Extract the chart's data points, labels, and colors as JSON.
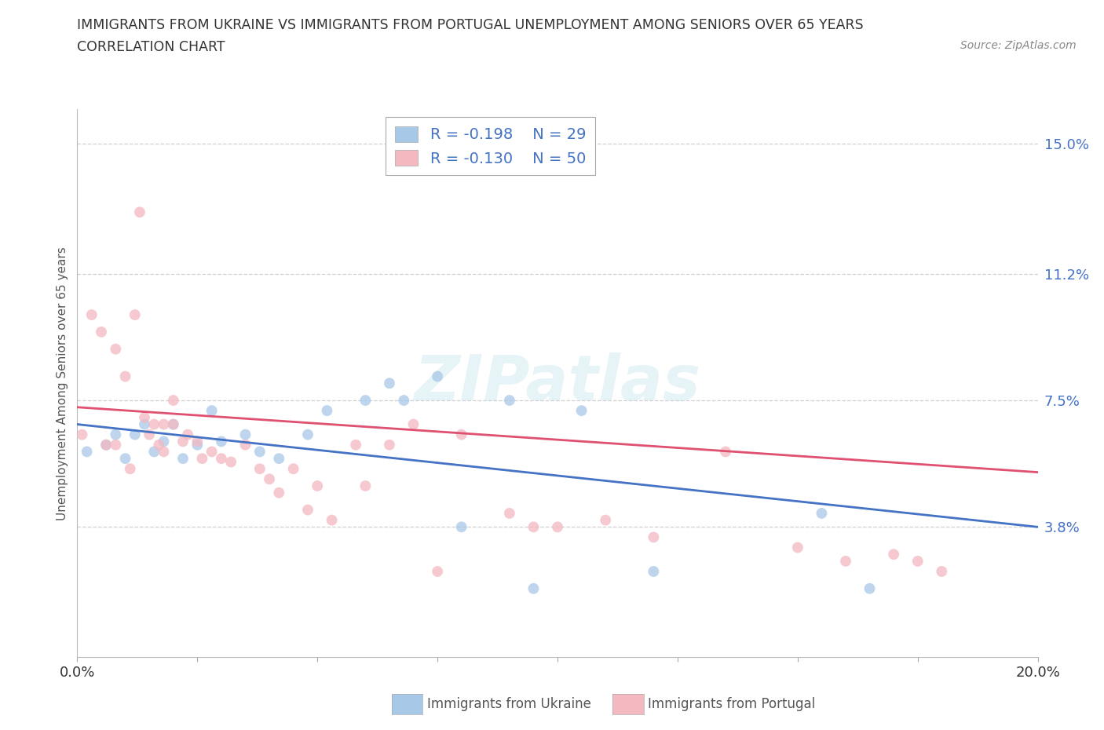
{
  "title_line1": "IMMIGRANTS FROM UKRAINE VS IMMIGRANTS FROM PORTUGAL UNEMPLOYMENT AMONG SENIORS OVER 65 YEARS",
  "title_line2": "CORRELATION CHART",
  "source": "Source: ZipAtlas.com",
  "ylabel": "Unemployment Among Seniors over 65 years",
  "xlim": [
    0.0,
    0.2
  ],
  "ylim": [
    0.0,
    0.16
  ],
  "yticks": [
    0.038,
    0.075,
    0.112,
    0.15
  ],
  "ytick_labels": [
    "3.8%",
    "7.5%",
    "11.2%",
    "15.0%"
  ],
  "xtick_positions": [
    0.0,
    0.025,
    0.05,
    0.075,
    0.1,
    0.125,
    0.15,
    0.175,
    0.2
  ],
  "ukraine_color": "#a8c8e8",
  "ukraine_edge_color": "#5b9bd5",
  "portugal_color": "#f4b8c1",
  "portugal_edge_color": "#e05070",
  "ukraine_R": -0.198,
  "ukraine_N": 29,
  "portugal_R": -0.13,
  "portugal_N": 50,
  "ukraine_scatter_x": [
    0.002,
    0.006,
    0.008,
    0.01,
    0.012,
    0.014,
    0.016,
    0.018,
    0.02,
    0.022,
    0.025,
    0.028,
    0.03,
    0.035,
    0.038,
    0.042,
    0.048,
    0.052,
    0.06,
    0.065,
    0.068,
    0.075,
    0.08,
    0.09,
    0.095,
    0.105,
    0.12,
    0.155,
    0.165
  ],
  "ukraine_scatter_y": [
    0.06,
    0.062,
    0.065,
    0.058,
    0.065,
    0.068,
    0.06,
    0.063,
    0.068,
    0.058,
    0.062,
    0.072,
    0.063,
    0.065,
    0.06,
    0.058,
    0.065,
    0.072,
    0.075,
    0.08,
    0.075,
    0.082,
    0.038,
    0.075,
    0.02,
    0.072,
    0.025,
    0.042,
    0.02
  ],
  "portugal_scatter_x": [
    0.001,
    0.003,
    0.005,
    0.006,
    0.008,
    0.008,
    0.01,
    0.011,
    0.012,
    0.013,
    0.014,
    0.015,
    0.016,
    0.017,
    0.018,
    0.018,
    0.02,
    0.02,
    0.022,
    0.023,
    0.025,
    0.026,
    0.028,
    0.03,
    0.032,
    0.035,
    0.038,
    0.04,
    0.042,
    0.045,
    0.048,
    0.05,
    0.053,
    0.058,
    0.06,
    0.065,
    0.07,
    0.075,
    0.08,
    0.09,
    0.095,
    0.1,
    0.11,
    0.12,
    0.135,
    0.15,
    0.16,
    0.17,
    0.175,
    0.18
  ],
  "portugal_scatter_y": [
    0.065,
    0.1,
    0.095,
    0.062,
    0.09,
    0.062,
    0.082,
    0.055,
    0.1,
    0.13,
    0.07,
    0.065,
    0.068,
    0.062,
    0.06,
    0.068,
    0.075,
    0.068,
    0.063,
    0.065,
    0.063,
    0.058,
    0.06,
    0.058,
    0.057,
    0.062,
    0.055,
    0.052,
    0.048,
    0.055,
    0.043,
    0.05,
    0.04,
    0.062,
    0.05,
    0.062,
    0.068,
    0.025,
    0.065,
    0.042,
    0.038,
    0.038,
    0.04,
    0.035,
    0.06,
    0.032,
    0.028,
    0.03,
    0.028,
    0.025
  ],
  "ukraine_trend_x": [
    0.0,
    0.2
  ],
  "ukraine_trend_y": [
    0.068,
    0.038
  ],
  "portugal_trend_x": [
    0.0,
    0.2
  ],
  "portugal_trend_y": [
    0.073,
    0.054
  ],
  "ukraine_trend_color": "#4472c4",
  "portugal_trend_color": "#e05070",
  "watermark_text": "ZIPatlas",
  "background_color": "#ffffff",
  "grid_color": "#d0d0d0",
  "marker_size": 100,
  "marker_alpha": 0.75
}
